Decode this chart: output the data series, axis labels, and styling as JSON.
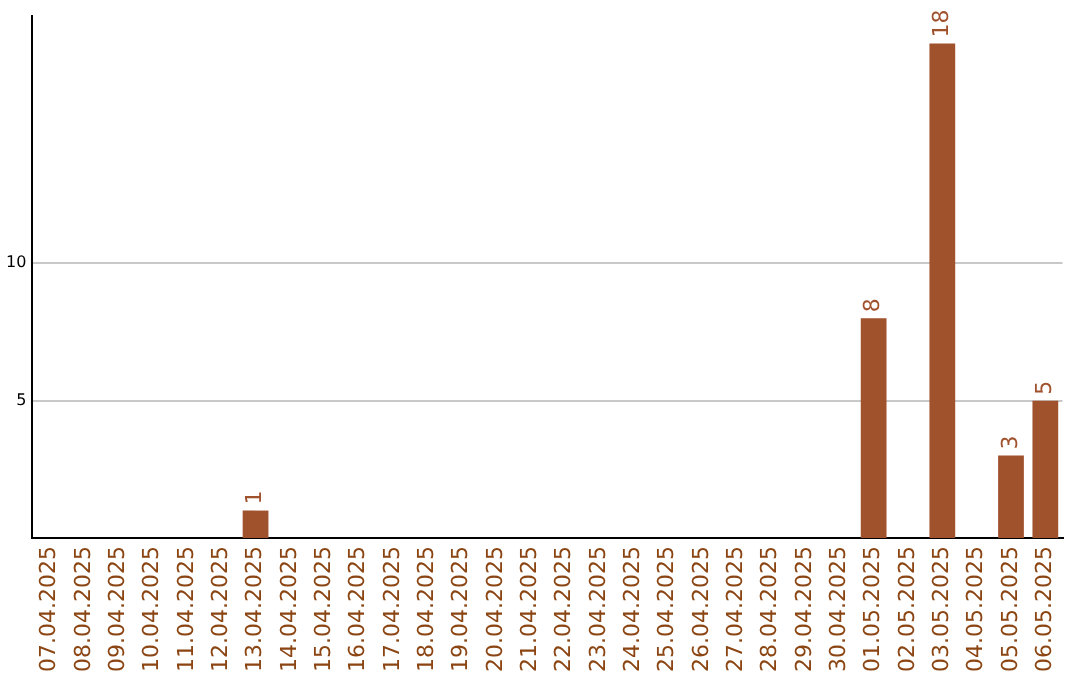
{
  "chart_data": {
    "type": "bar",
    "categories": [
      "07.04.2025",
      "08.04.2025",
      "09.04.2025",
      "10.04.2025",
      "11.04.2025",
      "12.04.2025",
      "13.04.2025",
      "14.04.2025",
      "15.04.2025",
      "16.04.2025",
      "17.04.2025",
      "18.04.2025",
      "19.04.2025",
      "20.04.2025",
      "21.04.2025",
      "22.04.2025",
      "23.04.2025",
      "24.04.2025",
      "25.04.2025",
      "26.04.2025",
      "27.04.2025",
      "28.04.2025",
      "29.04.2025",
      "30.04.2025",
      "01.05.2025",
      "02.05.2025",
      "03.05.2025",
      "04.05.2025",
      "05.05.2025",
      "06.05.2025"
    ],
    "values": [
      0,
      0,
      0,
      0,
      0,
      0,
      1,
      0,
      0,
      0,
      0,
      0,
      0,
      0,
      0,
      0,
      0,
      0,
      0,
      0,
      0,
      0,
      0,
      0,
      8,
      0,
      18,
      0,
      3,
      5
    ],
    "value_labels": [
      null,
      null,
      null,
      null,
      null,
      null,
      "1",
      null,
      null,
      null,
      null,
      null,
      null,
      null,
      null,
      null,
      null,
      null,
      null,
      null,
      null,
      null,
      null,
      null,
      "8",
      null,
      "18",
      null,
      "3",
      "5"
    ],
    "color": "#a0522d",
    "ylim": [
      0,
      19
    ],
    "yticks": [
      5,
      10
    ],
    "grid": "y",
    "legend": false
  }
}
